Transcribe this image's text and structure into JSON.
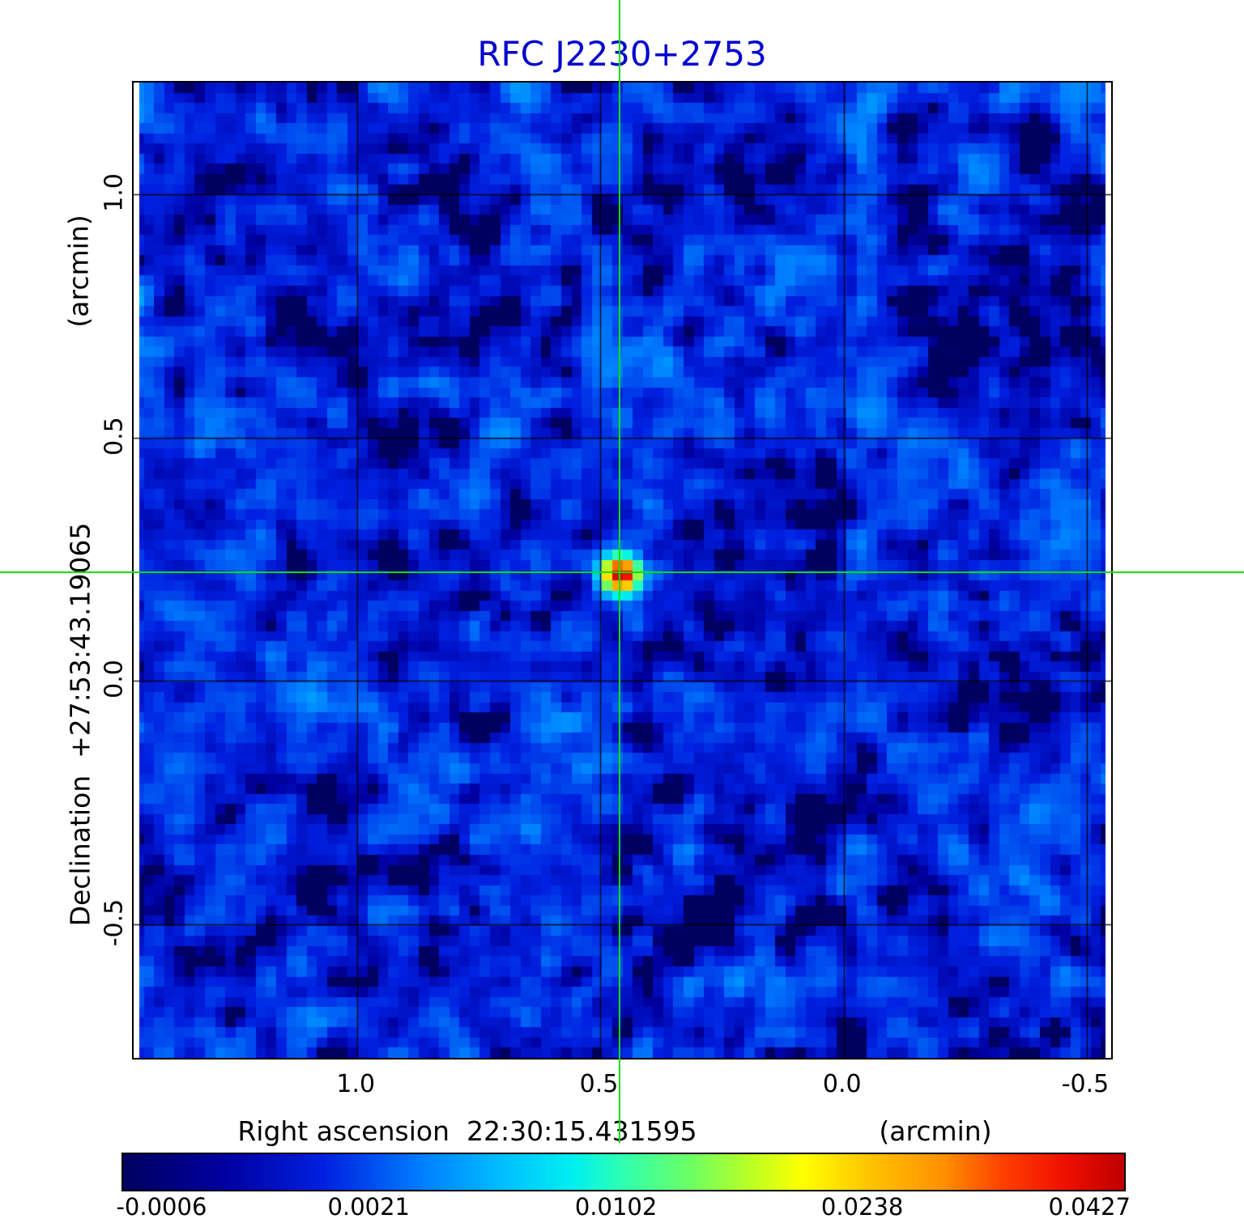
{
  "title": "RFC J2230+2753",
  "colors": {
    "title": "#0000cd",
    "crosshair": "#00e000",
    "grid": "#000000",
    "background": "#ffffff"
  },
  "axes": {
    "y_unit": "(arcmin)",
    "y_title": "Declination  +27:53:43.19065",
    "x_title": "Right ascension  22:30:15.431595",
    "x_unit": "(arcmin)",
    "x_tick_labels": [
      "1.0",
      "0.5",
      "0.0",
      "-0.5"
    ],
    "x_tick_values": [
      1.0,
      0.5,
      0.0,
      -0.5
    ],
    "y_tick_labels": [
      "1.0",
      "0.5",
      "0.0",
      "-0.5"
    ],
    "y_tick_values": [
      1.0,
      0.5,
      0.0,
      -0.5
    ]
  },
  "colorbar": {
    "tick_labels": [
      "-0.0006",
      "0.0021",
      "0.0102",
      "0.0238",
      "0.0427"
    ],
    "tick_values": [
      -0.0006,
      0.0021,
      0.0102,
      0.0238,
      0.0427
    ],
    "tick_positions": [
      0.04,
      0.247,
      0.494,
      0.74,
      0.967
    ]
  },
  "chart_data": {
    "type": "heatmap",
    "title": "RFC J2230+2753",
    "xlabel": "Right ascension  22:30:15.431595  (arcmin)",
    "ylabel": "Declination  +27:53:43.19065  (arcmin)",
    "x_range_arcmin": [
      1.46,
      -0.55
    ],
    "y_range_arcmin": [
      1.23,
      -0.775
    ],
    "grid_x_arcmin": [
      1.0,
      0.5,
      0.0,
      -0.5
    ],
    "grid_y_arcmin": [
      1.0,
      0.5,
      0.0,
      -0.5
    ],
    "crosshair_arcmin": {
      "x": 0.458,
      "y": 0.22
    },
    "source": {
      "ra_offset_arcmin": 0.458,
      "dec_offset_arcmin": 0.22,
      "peak_value_jy": 0.0427,
      "core_sigma_arcmin": 0.022,
      "halo_sigma_arcmin": 0.04,
      "halo_amp_jy": 0.0035
    },
    "noise": {
      "mean_jy": 0.0006,
      "sigma_jy": 0.0009,
      "min_jy": -0.0006
    },
    "value_scale": {
      "vmin": -0.0006,
      "vmax": 0.0427,
      "p_at_vmin": 0.04,
      "p_at_vmax": 0.967,
      "law": "quadratic"
    },
    "colormap_stops": [
      [
        0.0,
        "#000060"
      ],
      [
        0.1,
        "#0000a0"
      ],
      [
        0.2,
        "#0020e0"
      ],
      [
        0.3,
        "#0080ff"
      ],
      [
        0.38,
        "#00c0ff"
      ],
      [
        0.45,
        "#00f0f0"
      ],
      [
        0.5,
        "#30ffb0"
      ],
      [
        0.57,
        "#70ff60"
      ],
      [
        0.63,
        "#c0ff20"
      ],
      [
        0.68,
        "#ffff00"
      ],
      [
        0.75,
        "#ffc000"
      ],
      [
        0.82,
        "#ff9000"
      ],
      [
        0.88,
        "#ff4000"
      ],
      [
        0.94,
        "#f01000"
      ],
      [
        1.0,
        "#c00000"
      ]
    ],
    "render": {
      "grid_cells": 96,
      "seed": 20230715
    }
  }
}
